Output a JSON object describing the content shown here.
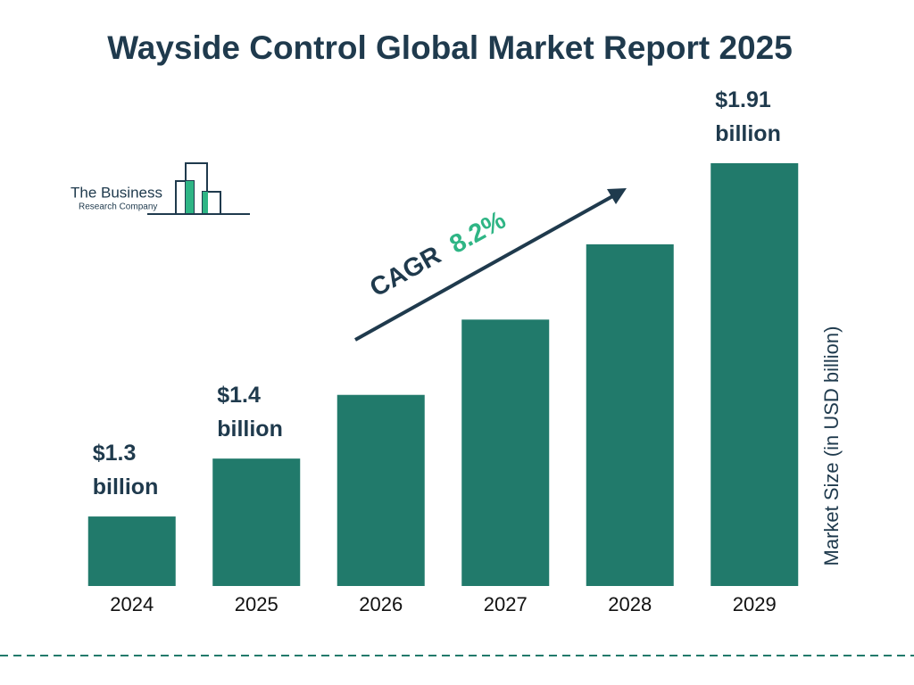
{
  "chart_data": {
    "type": "bar",
    "title": "Wayside Control Global Market Report 2025",
    "categories": [
      "2024",
      "2025",
      "2026",
      "2027",
      "2028",
      "2029"
    ],
    "values": [
      1.3,
      1.4,
      1.51,
      1.64,
      1.77,
      1.91
    ],
    "value_labels": [
      "$1.3 billion",
      "$1.4 billion",
      null,
      null,
      null,
      "$1.91 billion"
    ],
    "color": "#217a6b",
    "ylim": [
      1.18,
      1.91
    ],
    "y_axis_label": "Market Size (in USD billion)",
    "cagr_label": "CAGR",
    "cagr_value": "8.2%",
    "logo": {
      "line1": "The Business",
      "line2": "Research Company"
    }
  }
}
